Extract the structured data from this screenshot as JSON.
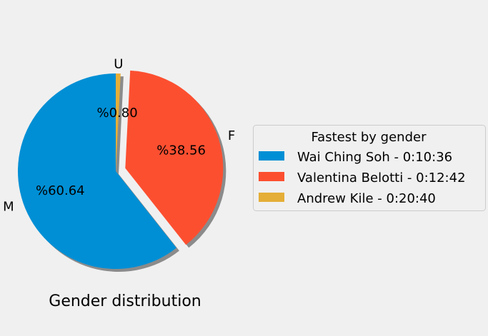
{
  "chart_data": {
    "type": "pie",
    "title": "Gender distribution",
    "slices": [
      {
        "label": "M",
        "value": 60.64,
        "pct_label": "%60.64",
        "color": "#008fd5"
      },
      {
        "label": "F",
        "value": 38.56,
        "pct_label": "%38.56",
        "color": "#fc4f30"
      },
      {
        "label": "U",
        "value": 0.8,
        "pct_label": "%0.80",
        "color": "#e5ae38"
      }
    ],
    "legend": {
      "title": "Fastest by gender",
      "placement": "right",
      "entries": [
        "Wai Ching Soh - 0:10:36",
        "Valentina Belotti - 0:12:42",
        "Andrew Kile - 0:20:40"
      ]
    },
    "shadow": true,
    "exploded_slice": "F"
  }
}
